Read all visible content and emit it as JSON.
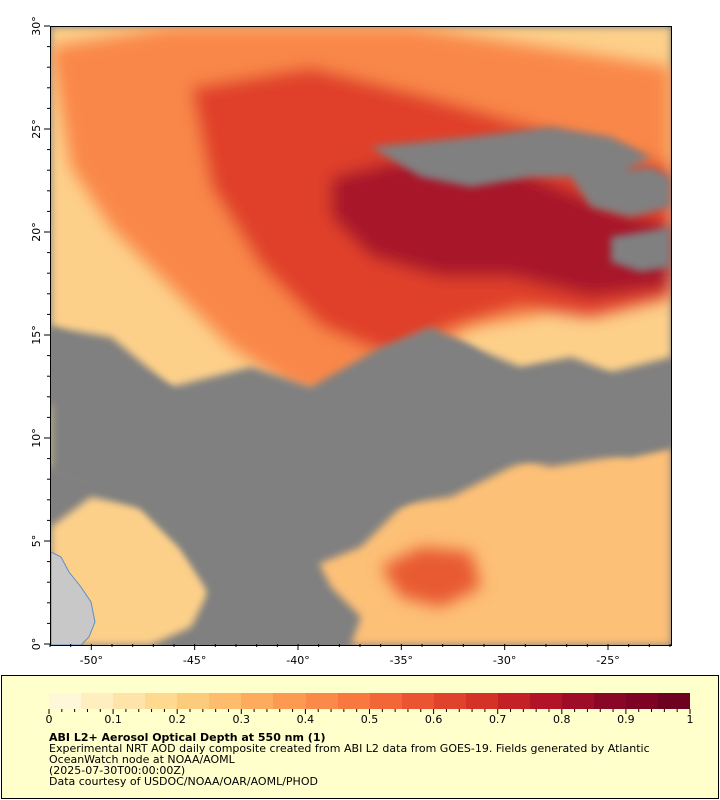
{
  "map": {
    "x_axis": {
      "labels": [
        "-50°",
        "-45°",
        "-40°",
        "-35°",
        "-30°",
        "-25°"
      ],
      "values": [
        -50,
        -45,
        -40,
        -35,
        -30,
        -25
      ],
      "range": [
        -52,
        -22
      ]
    },
    "y_axis": {
      "labels": [
        "0°",
        "5°",
        "10°",
        "15°",
        "20°",
        "25°",
        "30°"
      ],
      "values": [
        0,
        5,
        10,
        15,
        20,
        25,
        30
      ],
      "range": [
        0,
        30
      ]
    },
    "colors": {
      "missing": "#808080",
      "land": "#c8c8c8",
      "coast": "#5a8fc9"
    }
  },
  "legend": {
    "scale_labels": [
      "0",
      "0.1",
      "0.2",
      "0.3",
      "0.4",
      "0.5",
      "0.6",
      "0.7",
      "0.8",
      "0.9",
      "1"
    ],
    "scale_range": [
      0,
      1
    ],
    "title": "ABI L2+ Aerosol Optical Depth at 550 nm (1)",
    "description": "Experimental NRT AOD daily composite created from ABI L2 data from GOES-19. Fields generated by Atlantic OceanWatch node at NOAA/AOML",
    "date": "(2025-07-30T00:00:00Z)",
    "credit": "Data courtesy of USDOC/NOAA/OAR/AOML/PHOD"
  }
}
